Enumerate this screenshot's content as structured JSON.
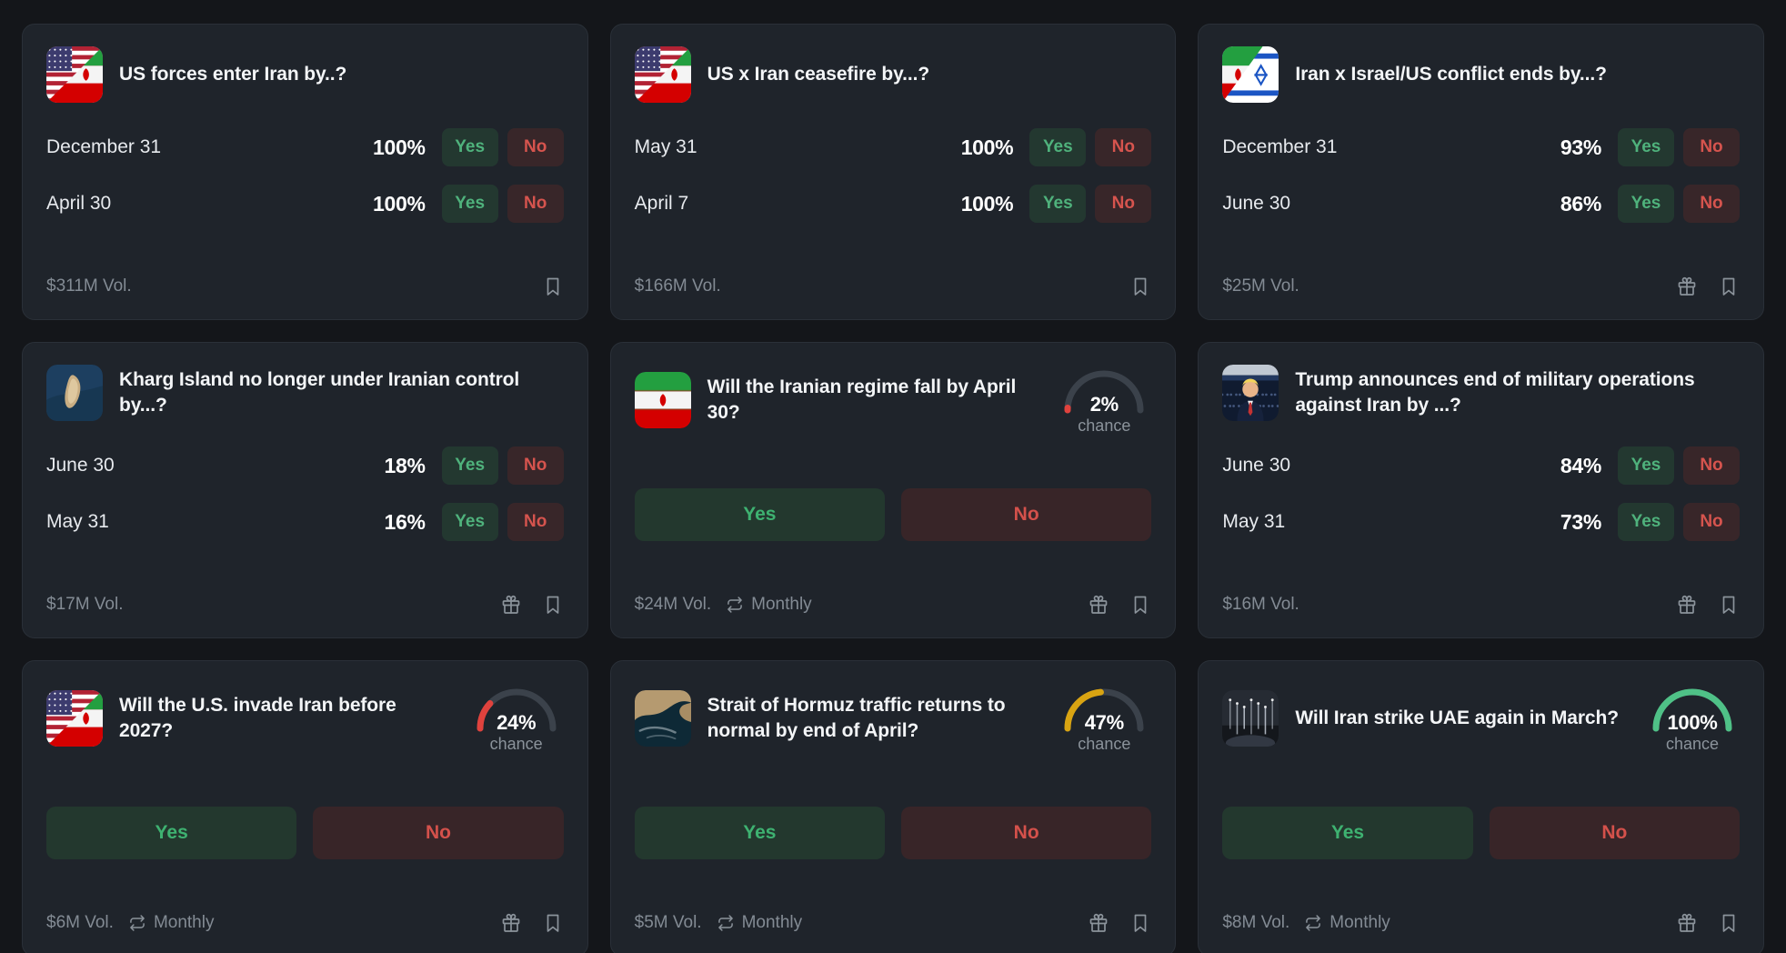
{
  "labels": {
    "yes": "Yes",
    "no": "No",
    "chance": "chance",
    "monthly": "Monthly"
  },
  "theme": {
    "background": "#14161a",
    "card_background": "#1f242b",
    "yes_green": "#4fb27c",
    "no_red": "#d6544e",
    "gauge_track": "#3b424b",
    "gauge_red": "#e0423d",
    "gauge_yellow": "#d9a412",
    "gauge_green": "#4fc187"
  },
  "icons": {
    "footer_actions": [
      "gift-icon",
      "bookmark-icon"
    ],
    "recurrence": "repeat-icon"
  },
  "cards": [
    {
      "type": "multi",
      "icon": "us-iran-flags-image",
      "title": "US forces enter Iran by..?",
      "rows": [
        {
          "label": "December 31",
          "percent": "100%"
        },
        {
          "label": "April 30",
          "percent": "100%"
        }
      ],
      "volume": "$311M Vol.",
      "monthly": false,
      "gift": false,
      "bookmark": true
    },
    {
      "type": "multi",
      "icon": "us-iran-flags-image",
      "title": "US x Iran ceasefire by...?",
      "rows": [
        {
          "label": "May 31",
          "percent": "100%"
        },
        {
          "label": "April 7",
          "percent": "100%"
        }
      ],
      "volume": "$166M Vol.",
      "monthly": false,
      "gift": false,
      "bookmark": true
    },
    {
      "type": "multi",
      "icon": "iran-israel-flags-image",
      "title": "Iran x Israel/US conflict ends by...?",
      "rows": [
        {
          "label": "December 31",
          "percent": "93%"
        },
        {
          "label": "June 30",
          "percent": "86%"
        }
      ],
      "volume": "$25M Vol.",
      "monthly": false,
      "gift": true,
      "bookmark": true
    },
    {
      "type": "multi",
      "icon": "kharg-island-image",
      "title": "Kharg Island no longer under Iranian control by...?",
      "rows": [
        {
          "label": "June 30",
          "percent": "18%"
        },
        {
          "label": "May 31",
          "percent": "16%"
        }
      ],
      "volume": "$17M Vol.",
      "monthly": false,
      "gift": true,
      "bookmark": true
    },
    {
      "type": "binary",
      "icon": "iran-flag-image",
      "title": "Will the Iranian regime fall by April 30?",
      "chance_percent": 2,
      "chance_label": "2%",
      "gauge_color": "#e0423d",
      "volume": "$24M Vol.",
      "monthly": true,
      "gift": true,
      "bookmark": true
    },
    {
      "type": "multi",
      "icon": "trump-rally-image",
      "title": "Trump announces end of military operations against Iran by ...?",
      "rows": [
        {
          "label": "June 30",
          "percent": "84%"
        },
        {
          "label": "May 31",
          "percent": "73%"
        }
      ],
      "volume": "$16M Vol.",
      "monthly": false,
      "gift": true,
      "bookmark": true
    },
    {
      "type": "binary",
      "icon": "us-iran-flags-image",
      "title": "Will the U.S. invade Iran before 2027?",
      "chance_percent": 24,
      "chance_label": "24%",
      "gauge_color": "#e0423d",
      "volume": "$6M Vol.",
      "monthly": true,
      "gift": true,
      "bookmark": true
    },
    {
      "type": "binary",
      "icon": "strait-of-hormuz-image",
      "title": "Strait of Hormuz traffic returns to normal by end of April?",
      "chance_percent": 47,
      "chance_label": "47%",
      "gauge_color": "#d9a412",
      "volume": "$5M Vol.",
      "monthly": true,
      "gift": true,
      "bookmark": true
    },
    {
      "type": "binary",
      "icon": "missile-night-image",
      "title": "Will Iran strike UAE again in March?",
      "chance_percent": 100,
      "chance_label": "100%",
      "gauge_color": "#4fc187",
      "volume": "$8M Vol.",
      "monthly": true,
      "gift": true,
      "bookmark": true
    }
  ]
}
